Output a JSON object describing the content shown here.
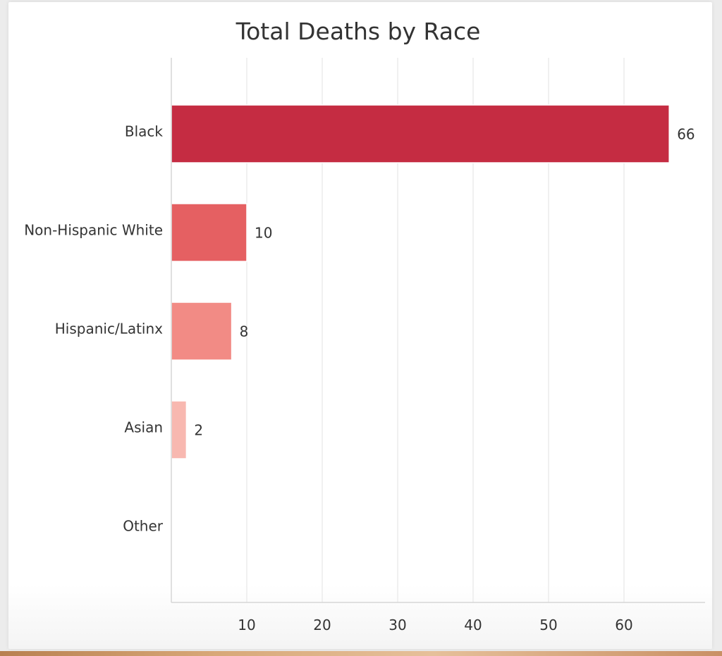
{
  "chart_data": {
    "type": "bar",
    "orientation": "horizontal",
    "title": "Total Deaths by Race",
    "xlabel": "",
    "ylabel": "",
    "categories": [
      "Black",
      "Non-Hispanic White",
      "Hispanic/Latinx",
      "Asian",
      "Other"
    ],
    "values": [
      66,
      10,
      8,
      2,
      0
    ],
    "data_labels": [
      "66",
      "10",
      "8",
      "2",
      ""
    ],
    "colors": [
      "#c52c42",
      "#e56062",
      "#f28b85",
      "#f8b8b0",
      "#fbd4cf"
    ],
    "xlim": [
      0,
      70
    ],
    "x_ticks": [
      10,
      20,
      30,
      40,
      50,
      60
    ],
    "grid": true,
    "legend": "none"
  }
}
